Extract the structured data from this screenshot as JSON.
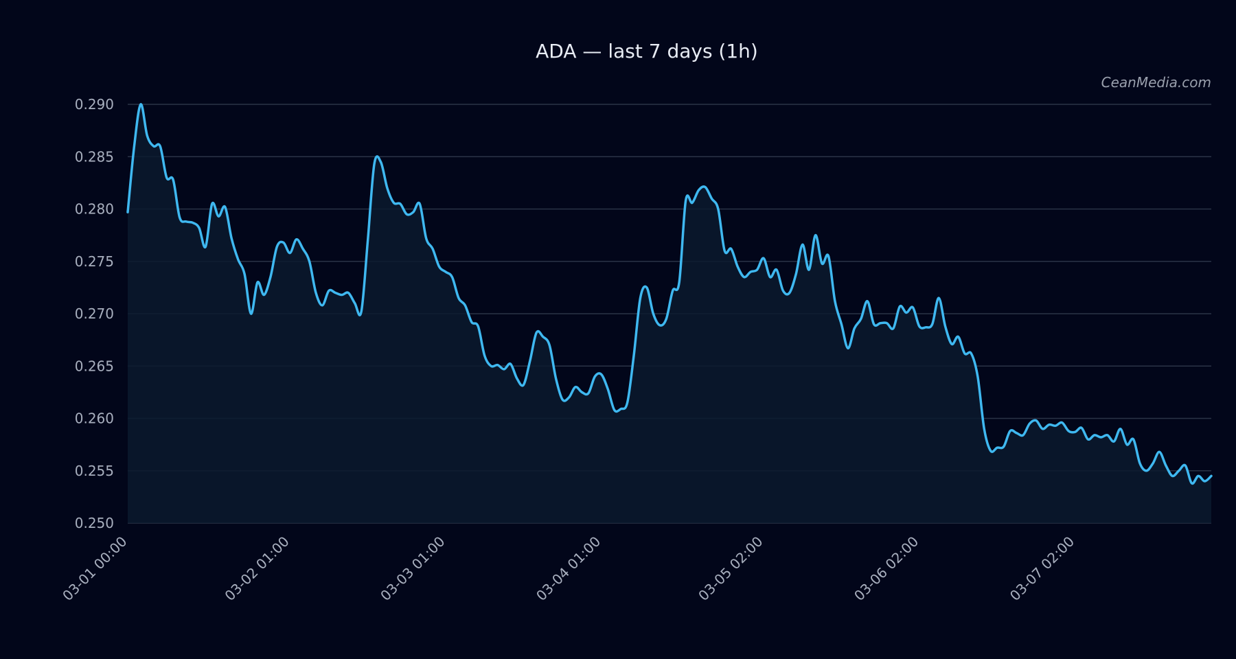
{
  "chart_data": {
    "type": "line",
    "title": "ADA — last 7 days (1h)",
    "watermark": "CeanMedia.com",
    "xlabel": "",
    "ylabel": "",
    "ylim": [
      0.25,
      0.29
    ],
    "grid": true,
    "colors": {
      "background": "#02061a",
      "line": "#3fb8f0",
      "area": "#0a1a2e",
      "grid": "#2a3346",
      "text": "#e8ecf4",
      "tick_text": "#a9b0bf"
    },
    "y_ticks": [
      "0.250",
      "0.255",
      "0.260",
      "0.265",
      "0.270",
      "0.275",
      "0.280",
      "0.285",
      "0.290"
    ],
    "x_ticks": [
      {
        "hour": 0,
        "label": "03-01 00:00"
      },
      {
        "hour": 25,
        "label": "03-02 01:00"
      },
      {
        "hour": 49,
        "label": "03-03 01:00"
      },
      {
        "hour": 73,
        "label": "03-04 01:00"
      },
      {
        "hour": 98,
        "label": "03-05 02:00"
      },
      {
        "hour": 122,
        "label": "03-06 02:00"
      },
      {
        "hour": 146,
        "label": "03-07 02:00"
      }
    ],
    "series": [
      {
        "name": "",
        "x_unit": "hour",
        "points": [
          [
            0,
            0.2797
          ],
          [
            1,
            0.286
          ],
          [
            2,
            0.29
          ],
          [
            3,
            0.287
          ],
          [
            4,
            0.286
          ],
          [
            5,
            0.286
          ],
          [
            6,
            0.283
          ],
          [
            7,
            0.2828
          ],
          [
            8,
            0.2792
          ],
          [
            9,
            0.2788
          ],
          [
            10,
            0.2787
          ],
          [
            11,
            0.2782
          ],
          [
            12,
            0.2764
          ],
          [
            13,
            0.2805
          ],
          [
            14,
            0.2793
          ],
          [
            15,
            0.2802
          ],
          [
            16,
            0.2772
          ],
          [
            17,
            0.2752
          ],
          [
            18,
            0.2738
          ],
          [
            19,
            0.27
          ],
          [
            20,
            0.273
          ],
          [
            21,
            0.2718
          ],
          [
            22,
            0.2735
          ],
          [
            23,
            0.2764
          ],
          [
            24,
            0.2768
          ],
          [
            25,
            0.2758
          ],
          [
            26,
            0.2771
          ],
          [
            27,
            0.2762
          ],
          [
            28,
            0.275
          ],
          [
            29,
            0.272
          ],
          [
            30,
            0.2708
          ],
          [
            31,
            0.2722
          ],
          [
            32,
            0.272
          ],
          [
            33,
            0.2718
          ],
          [
            34,
            0.272
          ],
          [
            35,
            0.271
          ],
          [
            36,
            0.2702
          ],
          [
            37,
            0.277
          ],
          [
            38,
            0.2843
          ],
          [
            39,
            0.2845
          ],
          [
            40,
            0.282
          ],
          [
            41,
            0.2806
          ],
          [
            42,
            0.2805
          ],
          [
            43,
            0.2795
          ],
          [
            44,
            0.2797
          ],
          [
            45,
            0.2805
          ],
          [
            46,
            0.2772
          ],
          [
            47,
            0.2762
          ],
          [
            48,
            0.2745
          ],
          [
            49,
            0.274
          ],
          [
            50,
            0.2735
          ],
          [
            51,
            0.2715
          ],
          [
            52,
            0.2708
          ],
          [
            53,
            0.2692
          ],
          [
            54,
            0.2688
          ],
          [
            55,
            0.266
          ],
          [
            56,
            0.265
          ],
          [
            57,
            0.2651
          ],
          [
            58,
            0.2647
          ],
          [
            59,
            0.2652
          ],
          [
            60,
            0.2638
          ],
          [
            61,
            0.2632
          ],
          [
            62,
            0.2655
          ],
          [
            63,
            0.2682
          ],
          [
            64,
            0.2678
          ],
          [
            65,
            0.267
          ],
          [
            66,
            0.2638
          ],
          [
            67,
            0.2618
          ],
          [
            68,
            0.262
          ],
          [
            69,
            0.263
          ],
          [
            70,
            0.2625
          ],
          [
            71,
            0.2624
          ],
          [
            72,
            0.264
          ],
          [
            73,
            0.2642
          ],
          [
            74,
            0.2628
          ],
          [
            75,
            0.2608
          ],
          [
            76,
            0.2609
          ],
          [
            77,
            0.2615
          ],
          [
            78,
            0.266
          ],
          [
            79,
            0.2715
          ],
          [
            80,
            0.2725
          ],
          [
            81,
            0.27
          ],
          [
            82,
            0.2689
          ],
          [
            83,
            0.2695
          ],
          [
            84,
            0.2722
          ],
          [
            85,
            0.273
          ],
          [
            86,
            0.2808
          ],
          [
            87,
            0.2806
          ],
          [
            88,
            0.2818
          ],
          [
            89,
            0.2821
          ],
          [
            90,
            0.281
          ],
          [
            91,
            0.28
          ],
          [
            92,
            0.276
          ],
          [
            93,
            0.2762
          ],
          [
            94,
            0.2745
          ],
          [
            95,
            0.2735
          ],
          [
            96,
            0.274
          ],
          [
            97,
            0.2742
          ],
          [
            98,
            0.2753
          ],
          [
            99,
            0.2735
          ],
          [
            100,
            0.2742
          ],
          [
            101,
            0.2722
          ],
          [
            102,
            0.272
          ],
          [
            103,
            0.2738
          ],
          [
            104,
            0.2766
          ],
          [
            105,
            0.2742
          ],
          [
            106,
            0.2775
          ],
          [
            107,
            0.2748
          ],
          [
            108,
            0.2755
          ],
          [
            109,
            0.2712
          ],
          [
            110,
            0.269
          ],
          [
            111,
            0.2667
          ],
          [
            112,
            0.2686
          ],
          [
            113,
            0.2695
          ],
          [
            114,
            0.2712
          ],
          [
            115,
            0.269
          ],
          [
            116,
            0.2691
          ],
          [
            117,
            0.2691
          ],
          [
            118,
            0.2686
          ],
          [
            119,
            0.2707
          ],
          [
            120,
            0.2701
          ],
          [
            121,
            0.2706
          ],
          [
            122,
            0.2688
          ],
          [
            123,
            0.2687
          ],
          [
            124,
            0.269
          ],
          [
            125,
            0.2715
          ],
          [
            126,
            0.2688
          ],
          [
            127,
            0.2671
          ],
          [
            128,
            0.2678
          ],
          [
            129,
            0.2662
          ],
          [
            130,
            0.2662
          ],
          [
            131,
            0.264
          ],
          [
            132,
            0.259
          ],
          [
            133,
            0.2569
          ],
          [
            134,
            0.2572
          ],
          [
            135,
            0.2573
          ],
          [
            136,
            0.2588
          ],
          [
            137,
            0.2586
          ],
          [
            138,
            0.2584
          ],
          [
            139,
            0.2595
          ],
          [
            140,
            0.2598
          ],
          [
            141,
            0.259
          ],
          [
            142,
            0.2594
          ],
          [
            143,
            0.2593
          ],
          [
            144,
            0.2596
          ],
          [
            145,
            0.2588
          ],
          [
            146,
            0.2587
          ],
          [
            147,
            0.2591
          ],
          [
            148,
            0.258
          ],
          [
            149,
            0.2584
          ],
          [
            150,
            0.2582
          ],
          [
            151,
            0.2584
          ],
          [
            152,
            0.2578
          ],
          [
            153,
            0.259
          ],
          [
            154,
            0.2575
          ],
          [
            155,
            0.258
          ],
          [
            156,
            0.2557
          ],
          [
            157,
            0.255
          ],
          [
            158,
            0.2557
          ],
          [
            159,
            0.2568
          ],
          [
            160,
            0.2555
          ],
          [
            161,
            0.2545
          ],
          [
            162,
            0.255
          ],
          [
            163,
            0.2555
          ],
          [
            164,
            0.2538
          ],
          [
            165,
            0.2545
          ],
          [
            166,
            0.254
          ],
          [
            167,
            0.2545
          ]
        ]
      }
    ]
  }
}
